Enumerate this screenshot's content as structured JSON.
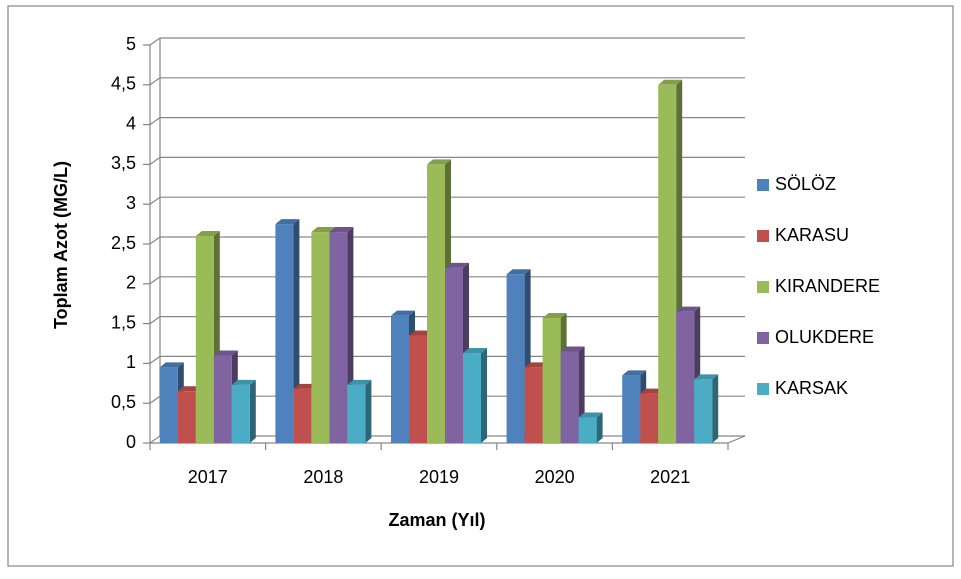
{
  "chart_data": {
    "type": "bar3d",
    "x_label": "Zaman (Yıl)",
    "y_label": "Toplam Azot (MG/L)",
    "categories": [
      "2017",
      "2018",
      "2019",
      "2020",
      "2021"
    ],
    "series": [
      {
        "name": "SÖLÖZ",
        "color": "#4f81bd",
        "values": [
          0.95,
          2.75,
          1.6,
          2.12,
          0.85
        ]
      },
      {
        "name": "KARASU",
        "color": "#c0504d",
        "values": [
          0.65,
          0.68,
          1.35,
          0.95,
          0.62
        ]
      },
      {
        "name": "KIRANDERE",
        "color": "#9bbb59",
        "values": [
          2.6,
          2.65,
          3.5,
          1.57,
          4.5
        ]
      },
      {
        "name": "OLUKDERE",
        "color": "#8064a2",
        "values": [
          1.1,
          2.65,
          2.2,
          1.15,
          1.65
        ]
      },
      {
        "name": "KARSAK",
        "color": "#4bacc6",
        "values": [
          0.73,
          0.73,
          1.13,
          0.32,
          0.8
        ]
      }
    ],
    "ylim": [
      0,
      5
    ],
    "yticks": [
      0,
      {
        "value": 0.5,
        "label": "0,5"
      },
      1,
      {
        "value": 1.5,
        "label": "1,5"
      },
      2,
      {
        "value": 2.5,
        "label": "2,5"
      },
      3,
      {
        "value": 3.5,
        "label": "3,5"
      },
      4,
      {
        "value": 4.5,
        "label": "4,5"
      },
      5
    ],
    "grid": true,
    "legend": "right"
  }
}
